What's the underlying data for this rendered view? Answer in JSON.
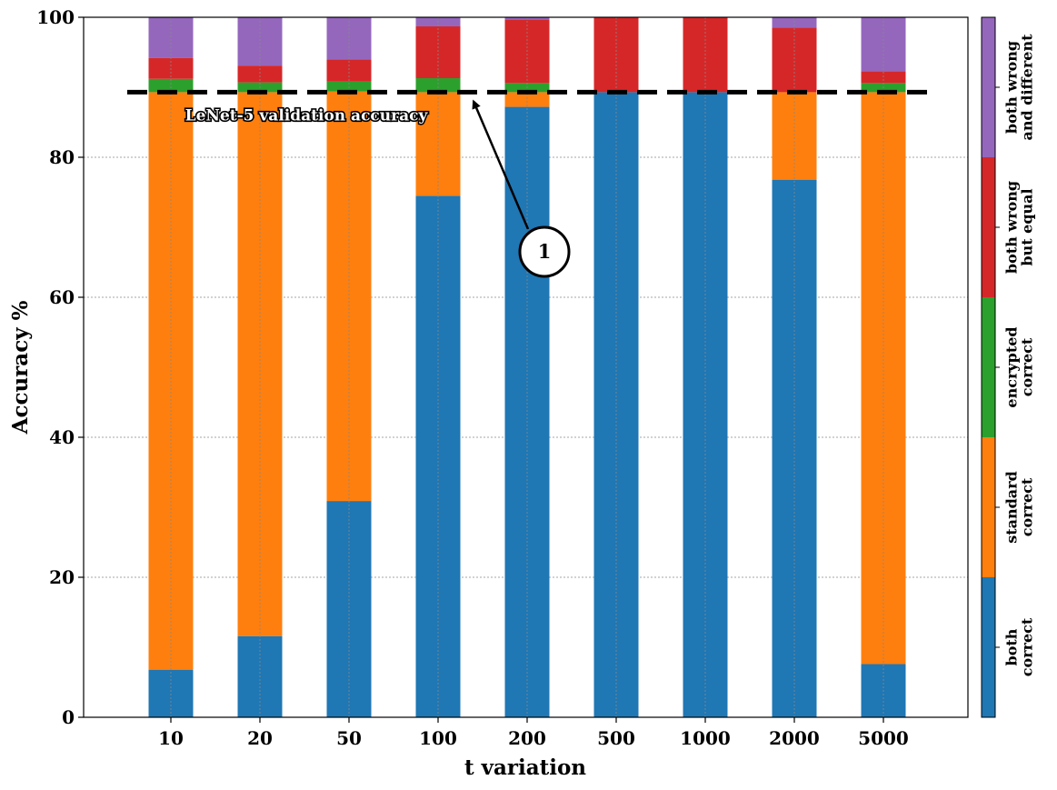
{
  "colors": {
    "both_correct": "#1f77b4",
    "standard_correct": "#ff7f0e",
    "encrypted_correct": "#2ca02c",
    "both_wrong_but_equal": "#d62728",
    "both_wrong_and_different": "#9467bd"
  },
  "chart_data": {
    "type": "bar",
    "stacked": true,
    "title": "",
    "xlabel": "t variation",
    "ylabel": "Accuracy %",
    "ylim": [
      0,
      100
    ],
    "yticks": [
      "0",
      "20",
      "40",
      "60",
      "80",
      "100"
    ],
    "grid": true,
    "categories": [
      "10",
      "20",
      "50",
      "100",
      "200",
      "500",
      "1000",
      "2000",
      "5000"
    ],
    "series": [
      {
        "name": "both correct",
        "color_key": "both_correct",
        "values": [
          6.8,
          11.6,
          30.9,
          74.5,
          87.2,
          89.3,
          89.3,
          76.8,
          7.6
        ]
      },
      {
        "name": "standard correct",
        "color_key": "standard_correct",
        "values": [
          82.5,
          77.7,
          58.5,
          14.8,
          2.1,
          0,
          0,
          12.5,
          81.7
        ]
      },
      {
        "name": "encrypted correct",
        "color_key": "encrypted_correct",
        "values": [
          1.9,
          1.4,
          1.4,
          2.0,
          1.3,
          0,
          0,
          0,
          1.3
        ]
      },
      {
        "name": "both wrong but equal",
        "color_key": "both_wrong_but_equal",
        "values": [
          3.0,
          2.4,
          3.2,
          7.4,
          9.1,
          10.7,
          10.7,
          9.2,
          1.7
        ]
      },
      {
        "name": "both wrong and different",
        "color_key": "both_wrong_and_different",
        "values": [
          5.8,
          6.9,
          6.0,
          1.3,
          0.3,
          0,
          0,
          1.5,
          7.7
        ]
      }
    ],
    "reference_line": {
      "value": 89.3,
      "label": "LeNet-5 validation accuracy",
      "style": "dashed",
      "color": "#000000"
    },
    "annotation": {
      "label": "1"
    },
    "legend": {
      "placement": "right colorbar",
      "entries": [
        {
          "lines": [
            "both",
            "correct"
          ],
          "color_key": "both_correct"
        },
        {
          "lines": [
            "standard",
            "correct"
          ],
          "color_key": "standard_correct"
        },
        {
          "lines": [
            "encrypted",
            "correct"
          ],
          "color_key": "encrypted_correct"
        },
        {
          "lines": [
            "both wrong",
            "but equal"
          ],
          "color_key": "both_wrong_but_equal"
        },
        {
          "lines": [
            "both wrong",
            "and different"
          ],
          "color_key": "both_wrong_and_different"
        }
      ]
    }
  }
}
